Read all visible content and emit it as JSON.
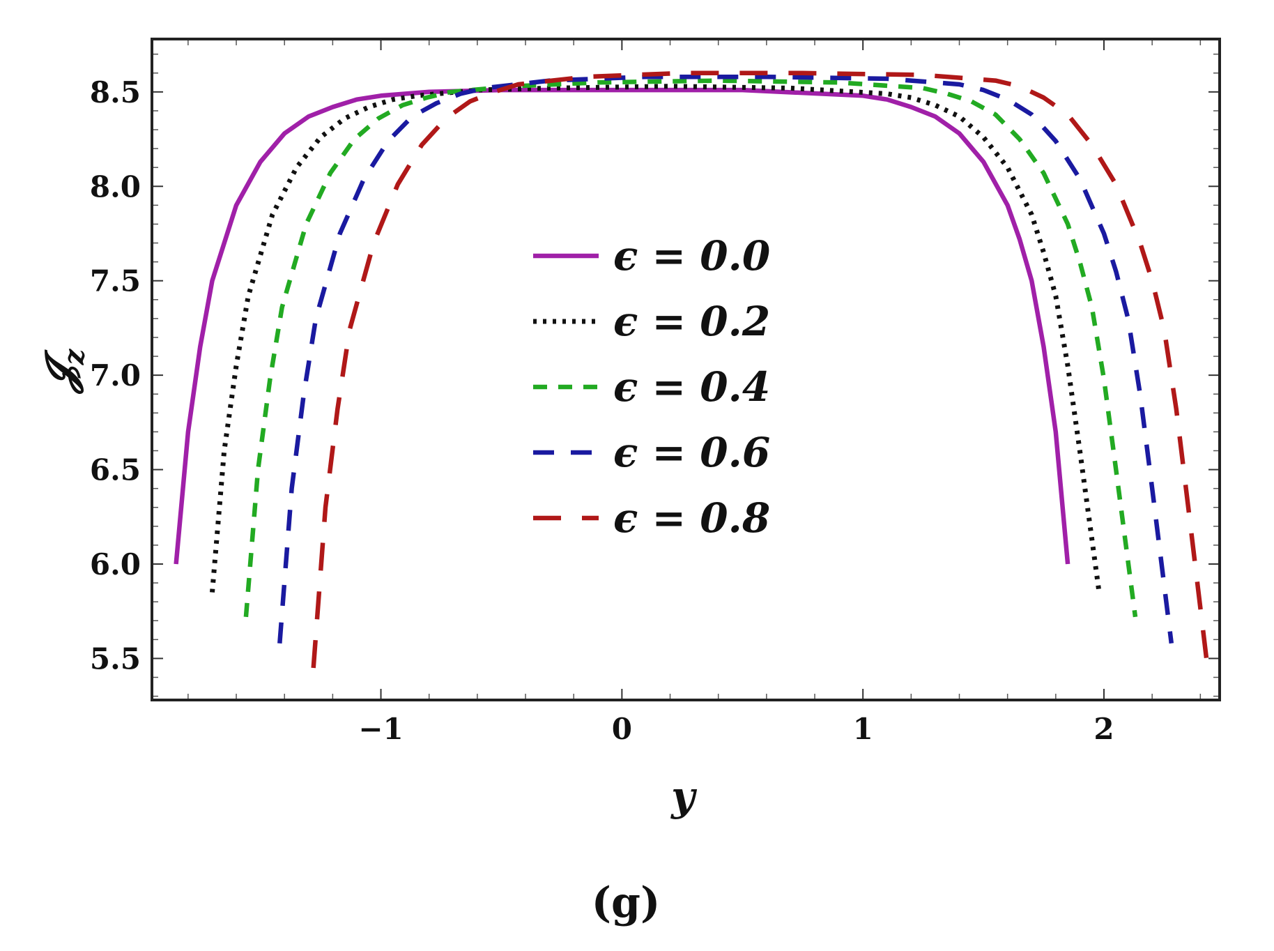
{
  "chart_data": {
    "type": "line",
    "title": "",
    "xlabel": "y",
    "ylabel": "𝓙z",
    "ylabel_main": "𝓙",
    "ylabel_sub": "z",
    "caption": "(g)",
    "xlim": [
      -1.95,
      2.48
    ],
    "ylim": [
      5.28,
      8.78
    ],
    "xticks": [
      -1,
      0,
      1,
      2
    ],
    "xtick_labels": [
      "−1",
      "0",
      "1",
      "2"
    ],
    "yticks": [
      5.5,
      6.0,
      6.5,
      7.0,
      7.5,
      8.0,
      8.5
    ],
    "ytick_labels": [
      "5.5",
      "6.0",
      "6.5",
      "7.0",
      "7.5",
      "8.0",
      "8.5"
    ],
    "grid": false,
    "legend_position": "center",
    "series": [
      {
        "name": "ϵ = 0.0",
        "color": "#a020a8",
        "style": "solid",
        "x": [
          -1.85,
          -1.8,
          -1.75,
          -1.7,
          -1.6,
          -1.5,
          -1.4,
          -1.3,
          -1.2,
          -1.1,
          -1.0,
          -0.8,
          -0.5,
          0.0,
          0.5,
          1.0,
          1.1,
          1.2,
          1.3,
          1.4,
          1.5,
          1.6,
          1.65,
          1.7,
          1.75,
          1.8,
          1.85
        ],
        "y": [
          6.0,
          6.7,
          7.15,
          7.5,
          7.9,
          8.13,
          8.28,
          8.37,
          8.42,
          8.46,
          8.48,
          8.5,
          8.51,
          8.51,
          8.51,
          8.48,
          8.46,
          8.42,
          8.37,
          8.28,
          8.13,
          7.9,
          7.72,
          7.5,
          7.15,
          6.7,
          6.0
        ]
      },
      {
        "name": "ϵ = 0.2",
        "color": "#111111",
        "style": "dotted",
        "x": [
          -1.7,
          -1.65,
          -1.6,
          -1.55,
          -1.45,
          -1.35,
          -1.25,
          -1.15,
          -1.05,
          -0.95,
          -0.85,
          -0.6,
          -0.3,
          0.2,
          0.7,
          1.1,
          1.2,
          1.3,
          1.4,
          1.5,
          1.6,
          1.7,
          1.75,
          1.8,
          1.85,
          1.9,
          1.98
        ],
        "y": [
          5.85,
          6.6,
          7.05,
          7.42,
          7.85,
          8.1,
          8.26,
          8.36,
          8.42,
          8.46,
          8.48,
          8.51,
          8.52,
          8.53,
          8.52,
          8.49,
          8.47,
          8.43,
          8.37,
          8.26,
          8.1,
          7.85,
          7.65,
          7.42,
          7.05,
          6.6,
          5.85
        ]
      },
      {
        "name": "ϵ = 0.4",
        "color": "#22aa22",
        "style": "short-dash",
        "x": [
          -1.56,
          -1.51,
          -1.46,
          -1.41,
          -1.31,
          -1.21,
          -1.11,
          -1.01,
          -0.91,
          -0.81,
          -0.71,
          -0.45,
          -0.1,
          0.4,
          0.9,
          1.25,
          1.35,
          1.45,
          1.55,
          1.65,
          1.75,
          1.85,
          1.9,
          1.95,
          2.0,
          2.05,
          2.13
        ],
        "y": [
          5.72,
          6.5,
          6.98,
          7.36,
          7.8,
          8.07,
          8.25,
          8.36,
          8.43,
          8.47,
          8.5,
          8.53,
          8.55,
          8.56,
          8.55,
          8.52,
          8.49,
          8.45,
          8.38,
          8.25,
          8.07,
          7.8,
          7.6,
          7.36,
          6.98,
          6.5,
          5.72
        ]
      },
      {
        "name": "ϵ = 0.6",
        "color": "#1a1aa0",
        "style": "dashed",
        "x": [
          -1.42,
          -1.37,
          -1.32,
          -1.27,
          -1.17,
          -1.07,
          -0.97,
          -0.87,
          -0.77,
          -0.67,
          -0.57,
          -0.3,
          0.1,
          0.6,
          1.1,
          1.4,
          1.5,
          1.6,
          1.7,
          1.8,
          1.9,
          2.0,
          2.05,
          2.1,
          2.15,
          2.2,
          2.28
        ],
        "y": [
          5.58,
          6.4,
          6.9,
          7.3,
          7.75,
          8.04,
          8.24,
          8.37,
          8.44,
          8.49,
          8.52,
          8.56,
          8.58,
          8.58,
          8.57,
          8.54,
          8.51,
          8.46,
          8.38,
          8.24,
          8.04,
          7.75,
          7.55,
          7.3,
          6.9,
          6.4,
          5.58
        ]
      },
      {
        "name": "ϵ = 0.8",
        "color": "#b01818",
        "style": "long-dash",
        "x": [
          -1.28,
          -1.23,
          -1.18,
          -1.13,
          -1.03,
          -0.93,
          -0.83,
          -0.73,
          -0.63,
          -0.53,
          -0.43,
          -0.15,
          0.25,
          0.75,
          1.25,
          1.55,
          1.65,
          1.75,
          1.85,
          1.95,
          2.05,
          2.15,
          2.2,
          2.25,
          2.3,
          2.35,
          2.43
        ],
        "y": [
          5.45,
          6.3,
          6.82,
          7.24,
          7.7,
          8.01,
          8.22,
          8.36,
          8.45,
          8.5,
          8.54,
          8.58,
          8.6,
          8.6,
          8.59,
          8.56,
          8.53,
          8.47,
          8.38,
          8.22,
          8.01,
          7.7,
          7.5,
          7.24,
          6.82,
          6.3,
          5.45
        ]
      }
    ]
  }
}
